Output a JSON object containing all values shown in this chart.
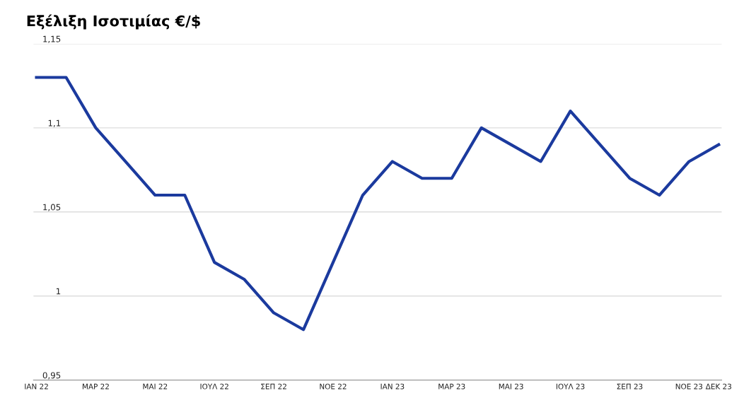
{
  "chart_data": {
    "type": "line",
    "title": "Εξέλιξη Ισοτιμίας €/$",
    "categories": [
      "ΙΑΝ 22",
      null,
      "ΜΑΡ 22",
      null,
      "ΜΑΙ 22",
      null,
      "ΙΟΥΛ 22",
      null,
      "ΣΕΠ 22",
      null,
      "ΝΟΕ 22",
      null,
      "ΙΑΝ 23",
      null,
      "ΜΑΡ 23",
      null,
      "ΜΑΙ 23",
      null,
      "ΙΟΥΛ 23",
      null,
      "ΣΕΠ 23",
      null,
      "ΝΟΕ 23",
      "ΔΕΚ 23"
    ],
    "series": [
      {
        "color": "#1b3a9e",
        "values": [
          1.13,
          1.13,
          1.1,
          1.08,
          1.06,
          1.06,
          1.02,
          1.01,
          0.99,
          0.98,
          1.02,
          1.06,
          1.08,
          1.07,
          1.07,
          1.1,
          1.09,
          1.08,
          1.11,
          1.09,
          1.07,
          1.06,
          1.08,
          1.09
        ]
      }
    ],
    "ylim": [
      0.95,
      1.15
    ],
    "yticks": [
      {
        "value": 0.95,
        "label": "0,95"
      },
      {
        "value": 1.0,
        "label": "1"
      },
      {
        "value": 1.05,
        "label": "1,05"
      },
      {
        "value": 1.1,
        "label": "1,1"
      },
      {
        "value": 1.15,
        "label": "1,15"
      }
    ],
    "grid": "y",
    "marker": "none",
    "line_style": "solid"
  }
}
